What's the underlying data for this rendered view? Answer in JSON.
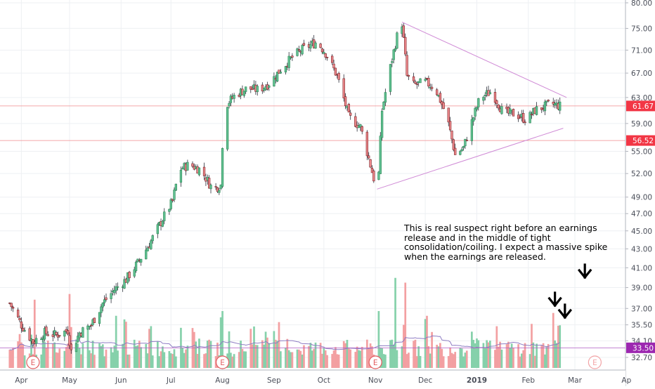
{
  "chart_data": {
    "type": "candlestick",
    "title": "",
    "xlabel": "",
    "ylabel": "",
    "ylim": [
      31.5,
      80.5
    ],
    "y_scale": "log",
    "grid": true,
    "x_tick_labels": [
      "Apr",
      "May",
      "Jun",
      "Jul",
      "Aug",
      "Sep",
      "Oct",
      "Nov",
      "Dec",
      "2019",
      "Feb",
      "Mar",
      "Ap"
    ],
    "y_tick_labels": [
      "32.70",
      "34.10",
      "35.50",
      "37.00",
      "39.00",
      "41.00",
      "43.00",
      "45.00",
      "47.00",
      "49.00",
      "52.00",
      "55.00",
      "59.00",
      "63.00",
      "67.00",
      "71.00",
      "75.00",
      "80.00"
    ],
    "price_labels": [
      {
        "value": "61.67",
        "color": "#f23645"
      },
      {
        "value": "56.52",
        "color": "#f23645"
      },
      {
        "value": "33.50",
        "color": "#9c27b0"
      }
    ],
    "horizontal_lines": [
      61.67,
      56.52,
      33.5
    ],
    "earnings_markers": [
      "E",
      "E",
      "E",
      "E"
    ],
    "annotation": "This is real suspect right before an earnings release and in the middle of tight consolidation/coiling. I expect a massive spike when the earnings are released.",
    "price_path": [
      {
        "date": "Mar 26",
        "price": 37.5
      },
      {
        "date": "Apr 2",
        "price": 35.5
      },
      {
        "date": "Apr 9",
        "price": 34.0
      },
      {
        "date": "Apr 16",
        "price": 34.8
      },
      {
        "date": "Apr 23",
        "price": 34.6
      },
      {
        "date": "Apr 30",
        "price": 35.0
      },
      {
        "date": "May 2",
        "price": 33.2
      },
      {
        "date": "May 7",
        "price": 34.8
      },
      {
        "date": "May 14",
        "price": 35.5
      },
      {
        "date": "May 21",
        "price": 37.5
      },
      {
        "date": "May 28",
        "price": 38.8
      },
      {
        "date": "Jun 4",
        "price": 39.8
      },
      {
        "date": "Jun 11",
        "price": 41.5
      },
      {
        "date": "Jun 18",
        "price": 43.5
      },
      {
        "date": "Jun 25",
        "price": 46.0
      },
      {
        "date": "Jul 2",
        "price": 48.5
      },
      {
        "date": "Jul 6",
        "price": 52.5
      },
      {
        "date": "Jul 12",
        "price": 53.2
      },
      {
        "date": "Jul 19",
        "price": 52.5
      },
      {
        "date": "Jul 26",
        "price": 50.0
      },
      {
        "date": "Jul 31",
        "price": 50.5
      },
      {
        "date": "Aug 2",
        "price": 61.5
      },
      {
        "date": "Aug 9",
        "price": 63.5
      },
      {
        "date": "Aug 16",
        "price": 64.5
      },
      {
        "date": "Aug 23",
        "price": 64.2
      },
      {
        "date": "Aug 30",
        "price": 65.5
      },
      {
        "date": "Sep 6",
        "price": 68.0
      },
      {
        "date": "Sep 13",
        "price": 70.0
      },
      {
        "date": "Sep 20",
        "price": 71.5
      },
      {
        "date": "Sep 27",
        "price": 72.5
      },
      {
        "date": "Oct 2",
        "price": 70.5
      },
      {
        "date": "Oct 9",
        "price": 66.5
      },
      {
        "date": "Oct 16",
        "price": 60.0
      },
      {
        "date": "Oct 23",
        "price": 58.5
      },
      {
        "date": "Oct 28",
        "price": 54.0
      },
      {
        "date": "Nov 1",
        "price": 50.5
      },
      {
        "date": "Nov 3",
        "price": 52.0
      },
      {
        "date": "Nov 5",
        "price": 61.0
      },
      {
        "date": "Nov 10",
        "price": 68.0
      },
      {
        "date": "Nov 14",
        "price": 73.5
      },
      {
        "date": "Nov 17",
        "price": 76.0
      },
      {
        "date": "Nov 20",
        "price": 66.5
      },
      {
        "date": "Nov 24",
        "price": 65.0
      },
      {
        "date": "Dec 1",
        "price": 65.5
      },
      {
        "date": "Dec 7",
        "price": 64.5
      },
      {
        "date": "Dec 14",
        "price": 60.0
      },
      {
        "date": "Dec 19",
        "price": 54.5
      },
      {
        "date": "Dec 24",
        "price": 55.5
      },
      {
        "date": "Dec 28",
        "price": 58.5
      },
      {
        "date": "Jan 3",
        "price": 63.0
      },
      {
        "date": "Jan 10",
        "price": 64.0
      },
      {
        "date": "Jan 17",
        "price": 60.5
      },
      {
        "date": "Jan 24",
        "price": 60.5
      },
      {
        "date": "Jan 31",
        "price": 59.5
      },
      {
        "date": "Feb 5",
        "price": 61.0
      },
      {
        "date": "Feb 10",
        "price": 61.5
      },
      {
        "date": "Feb 15",
        "price": 62.0
      },
      {
        "date": "Feb 20",
        "price": 61.67
      }
    ]
  }
}
